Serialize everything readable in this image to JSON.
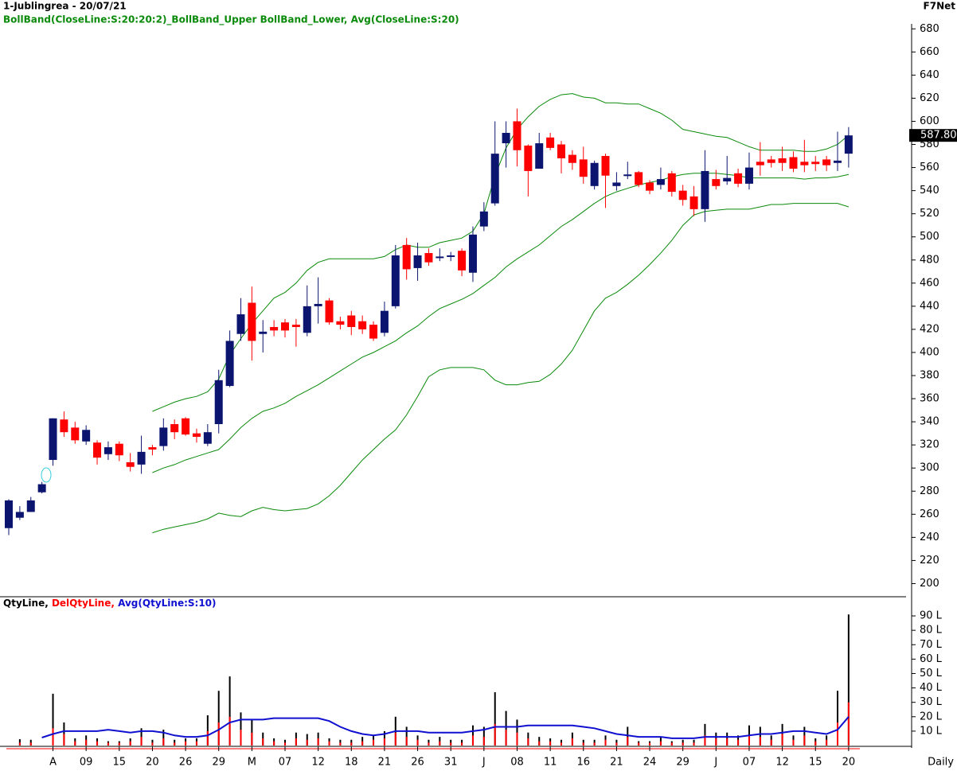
{
  "chart_data": {
    "type": "candlestick",
    "title": "1-Jublingrea - 20/07/21",
    "source": "F7Net",
    "legend": "BollBand(CloseLine:S:20:20:2)_BollBand_Upper BollBand_Lower, Avg(CloseLine:S:20)",
    "period": "Daily",
    "categories": [
      null,
      null,
      null,
      null,
      "A",
      null,
      null,
      "09",
      null,
      null,
      "15",
      null,
      null,
      "20",
      null,
      null,
      "26",
      null,
      null,
      "29",
      null,
      null,
      "M",
      null,
      null,
      "07",
      null,
      null,
      "12",
      null,
      null,
      "18",
      null,
      null,
      "21",
      null,
      null,
      "26",
      null,
      null,
      "31",
      null,
      null,
      "J",
      null,
      null,
      "08",
      null,
      null,
      "11",
      null,
      null,
      "16",
      null,
      null,
      "21",
      null,
      null,
      "24",
      null,
      null,
      "29",
      null,
      null,
      "J",
      null,
      null,
      "07",
      null,
      null,
      "12",
      null,
      null,
      "15",
      null,
      null,
      "20"
    ],
    "up_color": "#0b1570",
    "down_color": "#ff0000",
    "open": [
      248,
      257,
      262,
      279,
      307,
      342,
      335,
      323,
      322,
      312,
      321,
      305,
      303,
      318,
      319,
      338,
      343,
      330,
      321,
      338,
      371,
      416,
      443,
      416,
      422,
      426,
      424,
      417,
      440,
      445,
      427,
      432,
      427,
      424,
      417,
      440,
      493,
      473,
      486,
      482,
      483,
      488,
      469,
      509,
      529,
      581,
      600,
      579,
      559,
      586,
      580,
      571,
      567,
      544,
      570,
      544,
      553,
      556,
      547,
      545,
      555,
      540,
      535,
      524,
      550,
      548,
      555,
      546,
      565,
      567,
      568,
      569,
      565,
      565,
      567,
      564,
      572
    ],
    "high": [
      273,
      267,
      275,
      288,
      343,
      349,
      340,
      337,
      324,
      323,
      323,
      313,
      328,
      320,
      343,
      342,
      344,
      334,
      338,
      385,
      419,
      447,
      457,
      428,
      428,
      429,
      429,
      458,
      465,
      447,
      431,
      436,
      432,
      427,
      444,
      493,
      499,
      495,
      490,
      490,
      487,
      490,
      509,
      530,
      600,
      600,
      611,
      580,
      590,
      590,
      583,
      575,
      578,
      566,
      572,
      556,
      565,
      557,
      549,
      560,
      557,
      545,
      544,
      575,
      558,
      570,
      559,
      573,
      582,
      570,
      578,
      574,
      584,
      570,
      570,
      591,
      595
    ],
    "low": [
      242,
      255,
      262,
      278,
      302,
      327,
      321,
      320,
      303,
      307,
      306,
      297,
      295,
      311,
      315,
      325,
      328,
      322,
      319,
      330,
      370,
      410,
      393,
      400,
      414,
      413,
      405,
      414,
      425,
      424,
      420,
      415,
      416,
      410,
      414,
      438,
      463,
      462,
      475,
      479,
      479,
      466,
      461,
      505,
      527,
      560,
      561,
      535,
      559,
      575,
      555,
      558,
      546,
      541,
      525,
      540,
      550,
      543,
      537,
      541,
      535,
      527,
      518,
      513,
      541,
      545,
      543,
      541,
      553,
      560,
      557,
      556,
      556,
      557,
      557,
      557,
      560
    ],
    "close": [
      272,
      262,
      272,
      286,
      343,
      331,
      324,
      333,
      309,
      318,
      311,
      301,
      314,
      316,
      335,
      331,
      329,
      327,
      331,
      376,
      410,
      433,
      410,
      418,
      419,
      419,
      422,
      440,
      442,
      426,
      424,
      422,
      420,
      412,
      436,
      484,
      472,
      484,
      478,
      483,
      484,
      471,
      502,
      522,
      572,
      590,
      575,
      557,
      581,
      577,
      568,
      564,
      552,
      564,
      553,
      547,
      554,
      545,
      540,
      550,
      539,
      532,
      524,
      557,
      544,
      551,
      546,
      560,
      562,
      564,
      564,
      559,
      562,
      563,
      562,
      566,
      587.8
    ],
    "last_price": {
      "value": 587.8,
      "label": "587.80"
    },
    "bands": {
      "color": "#0a8a0a",
      "upper": [
        null,
        null,
        null,
        null,
        null,
        null,
        null,
        null,
        null,
        null,
        null,
        null,
        null,
        349,
        353,
        357,
        360,
        362,
        366,
        377,
        398,
        412,
        425,
        436,
        447,
        452,
        460,
        471,
        478,
        481,
        481,
        481,
        481,
        481,
        483,
        489,
        493,
        491,
        491,
        495,
        497,
        499,
        505,
        520,
        553,
        577,
        593,
        604,
        613,
        619,
        623,
        624,
        621,
        620,
        616,
        616,
        615,
        615,
        611,
        607,
        601,
        593,
        591,
        589,
        587,
        586,
        582,
        578,
        575,
        575,
        575,
        575,
        574,
        574,
        576,
        580,
        588
      ],
      "middle": [
        null,
        null,
        null,
        null,
        null,
        null,
        null,
        null,
        null,
        null,
        null,
        null,
        null,
        296,
        300,
        303,
        307,
        310,
        313,
        316,
        325,
        335,
        343,
        349,
        352,
        356,
        362,
        367,
        372,
        378,
        384,
        390,
        396,
        400,
        405,
        410,
        417,
        423,
        431,
        438,
        442,
        446,
        451,
        458,
        465,
        474,
        481,
        487,
        493,
        501,
        509,
        515,
        522,
        529,
        535,
        539,
        542,
        545,
        547,
        549,
        552,
        554,
        555,
        555,
        555,
        554,
        553,
        551,
        551,
        551,
        551,
        551,
        550,
        551,
        551,
        552,
        554
      ],
      "lower": [
        null,
        null,
        null,
        null,
        null,
        null,
        null,
        null,
        null,
        null,
        null,
        null,
        null,
        244,
        247,
        249,
        251,
        253,
        256,
        261,
        259,
        258,
        263,
        266,
        264,
        263,
        264,
        265,
        269,
        276,
        285,
        296,
        307,
        316,
        325,
        333,
        346,
        362,
        379,
        385,
        387,
        387,
        387,
        385,
        376,
        372,
        372,
        374,
        375,
        381,
        390,
        402,
        419,
        436,
        447,
        452,
        459,
        467,
        476,
        486,
        497,
        510,
        519,
        522,
        523,
        524,
        524,
        524,
        526,
        528,
        528,
        529,
        529,
        529,
        529,
        529,
        526
      ]
    },
    "ylim": [
      190,
      685
    ],
    "yticks": [
      200,
      220,
      240,
      260,
      280,
      300,
      320,
      340,
      360,
      380,
      400,
      420,
      440,
      460,
      480,
      500,
      520,
      540,
      560,
      580,
      600,
      620,
      640,
      660,
      680
    ],
    "series": [
      {
        "name": "QtyLine,",
        "color": "#000000",
        "axis": "y2",
        "values": [
          null,
          4.4,
          4,
          null,
          36,
          16,
          5,
          7,
          5,
          3,
          3,
          5,
          12,
          4,
          11,
          4,
          5,
          5,
          21,
          38,
          48,
          23,
          18,
          9,
          5,
          4,
          9,
          8,
          9,
          5,
          4,
          4,
          6,
          7,
          10,
          20,
          13,
          7,
          4,
          6,
          4,
          4,
          14,
          13,
          37,
          24,
          18,
          9,
          6,
          5,
          4,
          9,
          4,
          4,
          7,
          4,
          13,
          3,
          3,
          6,
          3,
          4,
          4,
          15,
          9,
          9,
          7,
          14,
          13,
          7,
          15,
          7,
          13,
          5,
          7,
          38,
          91
        ]
      },
      {
        "name": "DelQtyLine,",
        "color": "#ff0000",
        "axis": "y2",
        "values": [
          null,
          2,
          2,
          null,
          12,
          8,
          3,
          4,
          3,
          2,
          2,
          3,
          6,
          2,
          5,
          2,
          3,
          3,
          10,
          16,
          20,
          11,
          9,
          5,
          3,
          2,
          5,
          4,
          5,
          3,
          2,
          2,
          3,
          4,
          5,
          9,
          6,
          4,
          2,
          3,
          2,
          2,
          7,
          6,
          15,
          11,
          9,
          5,
          3,
          3,
          2,
          5,
          2,
          2,
          4,
          2,
          6,
          2,
          2,
          3,
          2,
          2,
          2,
          7,
          5,
          5,
          4,
          7,
          6,
          4,
          8,
          4,
          7,
          3,
          4,
          16,
          30
        ]
      },
      {
        "name": "Avg(QtyLine:S:10)",
        "color": "#1010d0",
        "axis": "y2",
        "values": [
          null,
          null,
          null,
          5.5,
          8,
          10,
          10,
          10,
          10,
          11,
          10,
          9,
          10,
          10,
          9,
          7,
          6,
          6,
          7,
          11,
          16,
          18,
          18,
          18,
          19,
          19,
          19,
          19,
          19,
          17,
          13,
          10,
          8,
          7,
          8,
          10,
          10,
          10,
          9,
          9,
          9,
          9,
          10,
          11,
          13,
          13,
          13,
          14,
          14,
          14,
          14,
          14,
          13,
          12,
          10,
          8,
          7,
          6,
          6,
          6,
          5,
          5,
          5,
          6,
          6,
          6,
          6,
          7,
          8,
          8,
          9,
          10,
          10,
          9,
          8,
          11,
          20
        ]
      }
    ],
    "y2lim": [
      0,
      95
    ],
    "y2ticks": [
      {
        "value": 10,
        "label": "10 L"
      },
      {
        "value": 20,
        "label": "20 L"
      },
      {
        "value": 30,
        "label": "30 L"
      },
      {
        "value": 40,
        "label": "40 L"
      },
      {
        "value": 50,
        "label": "50 L"
      },
      {
        "value": 60,
        "label": "60 L"
      },
      {
        "value": 70,
        "label": "70 L"
      },
      {
        "value": 80,
        "label": "80 L"
      },
      {
        "value": 90,
        "label": "90 L"
      }
    ]
  }
}
